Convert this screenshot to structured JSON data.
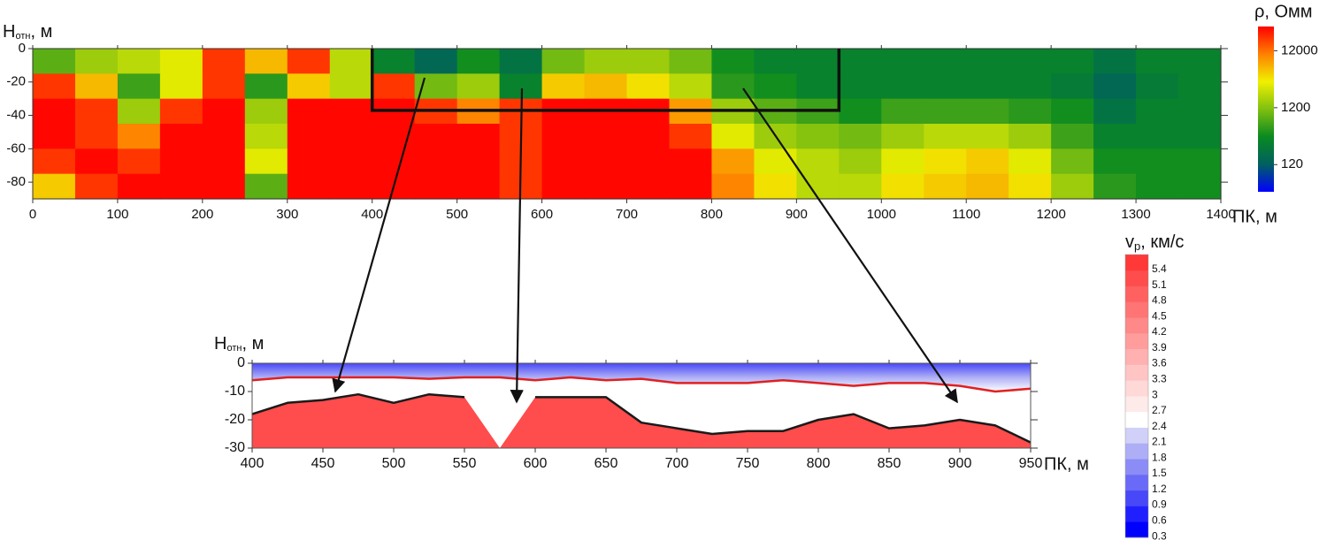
{
  "chart_data": [
    {
      "type": "heatmap",
      "ylabel": "H",
      "ylabel_sub": "отн",
      "ylabel_unit": ", м",
      "xlabel": "ПК, м",
      "xlim": [
        0,
        1400
      ],
      "xticks": [
        0,
        100,
        200,
        300,
        400,
        500,
        600,
        700,
        800,
        900,
        1000,
        1100,
        1200,
        1300,
        1400
      ],
      "ylim": [
        -90,
        0
      ],
      "yticks": [
        0,
        -20,
        -40,
        -60,
        -80
      ],
      "x_bins": [
        0,
        50,
        100,
        150,
        200,
        250,
        300,
        350,
        400,
        450,
        500,
        550,
        600,
        650,
        700,
        750,
        800,
        850,
        900,
        950,
        1000,
        1050,
        1100,
        1150,
        1200,
        1250,
        1300,
        1350,
        1400
      ],
      "y_bins": [
        0,
        -15,
        -30,
        -45,
        -60,
        -75,
        -90
      ],
      "values": [
        [
          800,
          1500,
          2000,
          3000,
          20000,
          6000,
          20000,
          2000,
          300,
          150,
          400,
          200,
          1000,
          1500,
          1500,
          1000,
          400,
          300,
          300,
          300,
          300,
          300,
          300,
          300,
          300,
          200,
          300,
          300
        ],
        [
          20000,
          6000,
          600,
          3000,
          20000,
          500,
          5000,
          2000,
          20000,
          1000,
          1500,
          300,
          5000,
          6000,
          4000,
          2000,
          500,
          400,
          300,
          300,
          300,
          300,
          300,
          300,
          250,
          150,
          250,
          300
        ],
        [
          30000,
          20000,
          1500,
          20000,
          30000,
          1500,
          30000,
          30000,
          30000,
          20000,
          10000,
          20000,
          30000,
          30000,
          30000,
          8000,
          1500,
          800,
          600,
          400,
          600,
          600,
          600,
          500,
          400,
          200,
          300,
          300
        ],
        [
          30000,
          20000,
          10000,
          30000,
          30000,
          2000,
          30000,
          30000,
          30000,
          30000,
          30000,
          20000,
          30000,
          30000,
          30000,
          20000,
          3000,
          1500,
          1200,
          1000,
          1500,
          2000,
          2000,
          1500,
          600,
          300,
          300,
          300
        ],
        [
          20000,
          30000,
          20000,
          30000,
          30000,
          3000,
          30000,
          30000,
          30000,
          30000,
          30000,
          20000,
          30000,
          30000,
          30000,
          30000,
          8000,
          3000,
          2000,
          1500,
          3000,
          4000,
          5000,
          3000,
          1000,
          400,
          400,
          400
        ],
        [
          5000,
          20000,
          30000,
          30000,
          30000,
          800,
          30000,
          30000,
          30000,
          30000,
          30000,
          20000,
          30000,
          30000,
          30000,
          30000,
          10000,
          4000,
          2000,
          2000,
          4000,
          5000,
          6000,
          4000,
          1500,
          500,
          400,
          400
        ]
      ],
      "box": {
        "x": [
          400,
          950
        ],
        "y": [
          0,
          -37
        ]
      },
      "colorbar": {
        "title": "ρ, Омм",
        "log": true,
        "clim": [
          40,
          32000
        ],
        "ticks": [
          120,
          1200,
          12000
        ],
        "colors": [
          "#0000ff",
          "#006060",
          "#0a8a20",
          "#80c010",
          "#f0f000",
          "#ff8000",
          "#ff0000"
        ]
      }
    },
    {
      "type": "contour",
      "ylabel": "H",
      "ylabel_sub": "отн",
      "ylabel_unit": ", м",
      "xlabel": "ПК, м",
      "xlim": [
        400,
        950
      ],
      "xticks": [
        400,
        450,
        500,
        550,
        600,
        650,
        700,
        750,
        800,
        850,
        900,
        950
      ],
      "ylim": [
        -30,
        0
      ],
      "yticks": [
        0,
        -10,
        -20,
        -30
      ],
      "x": [
        400,
        425,
        450,
        475,
        500,
        525,
        550,
        575,
        600,
        625,
        650,
        675,
        700,
        725,
        750,
        775,
        800,
        825,
        850,
        875,
        900,
        925,
        950
      ],
      "series": [
        {
          "color": "#e02020",
          "values": [
            -6,
            -5,
            -5,
            -5,
            -5,
            -5.5,
            -5,
            -5,
            -6,
            -5,
            -6,
            -5.5,
            -7,
            -7,
            -7,
            -6,
            -7,
            -8,
            -7,
            -7,
            -8,
            -10,
            -9
          ]
        },
        {
          "color": "#1a1a1a",
          "values": [
            -18,
            -14,
            -13,
            -11,
            -14,
            -11,
            -12,
            null,
            -12,
            -12,
            -12,
            -21,
            -23,
            -25,
            -24,
            -24,
            -20,
            -18,
            -23,
            -22,
            -20,
            -22,
            -28
          ]
        }
      ],
      "colorbar": {
        "title": "v",
        "title_sub": "p",
        "title_unit": ", км/с",
        "levels": [
          0.3,
          0.6,
          0.9,
          1.2,
          1.5,
          1.8,
          2.1,
          2.4,
          2.7,
          3,
          3.3,
          3.6,
          3.9,
          4.2,
          4.5,
          4.8,
          5.1,
          5.4
        ],
        "colors": [
          "#0000ff",
          "#2020ff",
          "#4848f8",
          "#6a6af8",
          "#8c8cf6",
          "#aeaef6",
          "#d0d0f8",
          "#ffffff",
          "#ffeaea",
          "#ffd8d8",
          "#ffc4c4",
          "#ffb0b0",
          "#ff9c9c",
          "#ff8888",
          "#ff7474",
          "#ff6060",
          "#ff4c4c",
          "#ff3838"
        ]
      }
    }
  ]
}
